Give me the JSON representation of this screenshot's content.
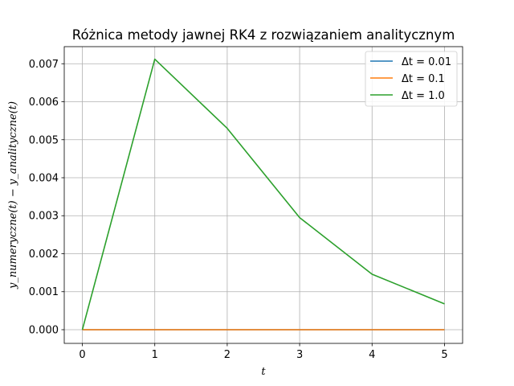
{
  "chart_data": {
    "type": "line",
    "title": "Różnica metody jawnej RK4 z rozwiązaniem analitycznym",
    "xlabel": "t",
    "ylabel": "y_numeryczne(t) − y_analityczne(t)",
    "xlim": [
      -0.25,
      5.25
    ],
    "ylim": [
      -0.00036,
      0.00745
    ],
    "xticks": [
      "0",
      "1",
      "2",
      "3",
      "4",
      "5"
    ],
    "yticks": [
      "0.000",
      "0.001",
      "0.002",
      "0.003",
      "0.004",
      "0.005",
      "0.006",
      "0.007"
    ],
    "grid": true,
    "legend_position": "top-right",
    "series": [
      {
        "name": "Δt = 0.01",
        "color": "#1f77b4",
        "x": [
          0,
          1,
          2,
          3,
          4,
          5
        ],
        "y": [
          0,
          0,
          0,
          0,
          0,
          0
        ]
      },
      {
        "name": "Δt = 0.1",
        "color": "#ff7f0e",
        "x": [
          0,
          1,
          2,
          3,
          4,
          5
        ],
        "y": [
          0,
          0,
          0,
          0,
          0,
          0
        ]
      },
      {
        "name": "Δt = 1.0",
        "color": "#2ca02c",
        "x": [
          0,
          1,
          2,
          3,
          4,
          5
        ],
        "y": [
          0,
          0.00712,
          0.0053,
          0.00295,
          0.00146,
          0.00068
        ]
      }
    ]
  }
}
